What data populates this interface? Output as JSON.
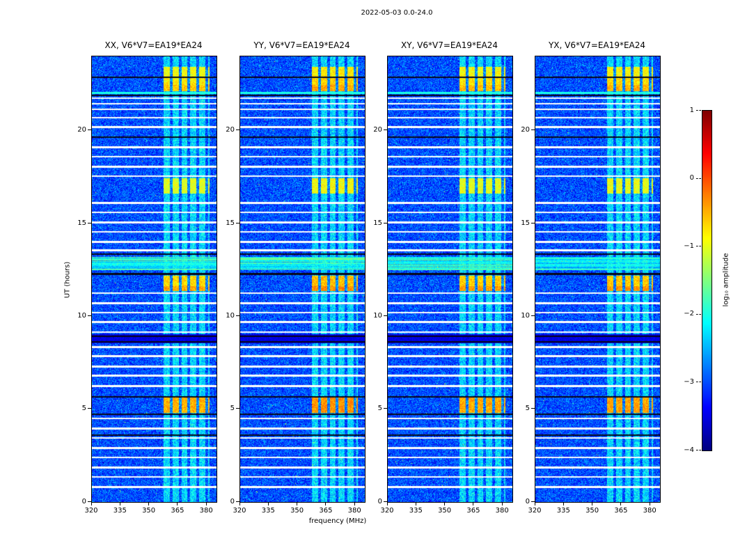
{
  "chart_data": {
    "type": "heatmap",
    "title": "2022-05-03 0.0-24.0",
    "xlabel": "frequency (MHz)",
    "ylabel": "UT (hours)",
    "xlim": [
      320,
      385
    ],
    "ylim": [
      0,
      24
    ],
    "xticks": [
      320,
      335,
      350,
      365,
      380
    ],
    "yticks": [
      0,
      5,
      10,
      15,
      20
    ],
    "panels": [
      {
        "pol": "XX",
        "title": "XX, V6*V7=EA19*EA24",
        "event_gain": 0.0
      },
      {
        "pol": "YY",
        "title": "YY, V6*V7=EA19*EA24",
        "event_gain": 0.15
      },
      {
        "pol": "XY",
        "title": "XY, V6*V7=EA19*EA24",
        "event_gain": 0.05
      },
      {
        "pol": "YX",
        "title": "YX, V6*V7=EA19*EA24",
        "event_gain": 0.08
      }
    ],
    "colorbar": {
      "label": "log₁₀ amplitude",
      "ticks": [
        1,
        0,
        -1,
        -2,
        -3,
        -4
      ],
      "min": -4,
      "max": 1,
      "colormap": "jet"
    },
    "features": {
      "background_level": -3.0,
      "stripes": {
        "f0": 357.5,
        "f1": 381.5,
        "period": 4.6,
        "duty": 0.68,
        "level": -2.3
      },
      "events": [
        {
          "t0": 4.8,
          "t1": 5.62,
          "level": -0.5
        },
        {
          "t0": 11.36,
          "t1": 11.62,
          "level": -0.45
        },
        {
          "t0": 11.62,
          "t1": 12.19,
          "level": -0.7
        },
        {
          "t0": 16.62,
          "t1": 17.42,
          "level": -1.05
        },
        {
          "t0": 22.12,
          "t1": 22.45,
          "level": -0.6
        },
        {
          "t0": 22.45,
          "t1": 22.85,
          "level": -0.8
        },
        {
          "t0": 22.9,
          "t1": 23.45,
          "level": -0.95
        }
      ],
      "cyan_bands": [
        {
          "t0": 12.49,
          "t1": 13.2,
          "level": -2.1
        }
      ],
      "dark_bands": [
        {
          "t0": 8.55,
          "t1": 9.05
        }
      ],
      "cyan_lines": [
        22.02
      ],
      "white_lines": [
        0.8,
        1.35,
        1.85,
        2.4,
        2.9,
        3.45,
        3.95,
        4.5,
        6.25,
        6.8,
        7.3,
        7.85,
        8.35,
        9.15,
        9.7,
        10.2,
        10.7,
        11.25,
        13.55,
        14.0,
        14.55,
        15.05,
        15.6,
        16.1,
        17.55,
        18.05,
        18.6,
        19.1,
        20.2,
        20.7,
        21.15,
        21.45,
        21.75
      ],
      "black_lines": [
        3.6,
        4.72,
        5.66,
        8.62,
        8.92,
        12.28,
        13.35,
        19.65,
        21.9,
        22.87
      ]
    }
  }
}
